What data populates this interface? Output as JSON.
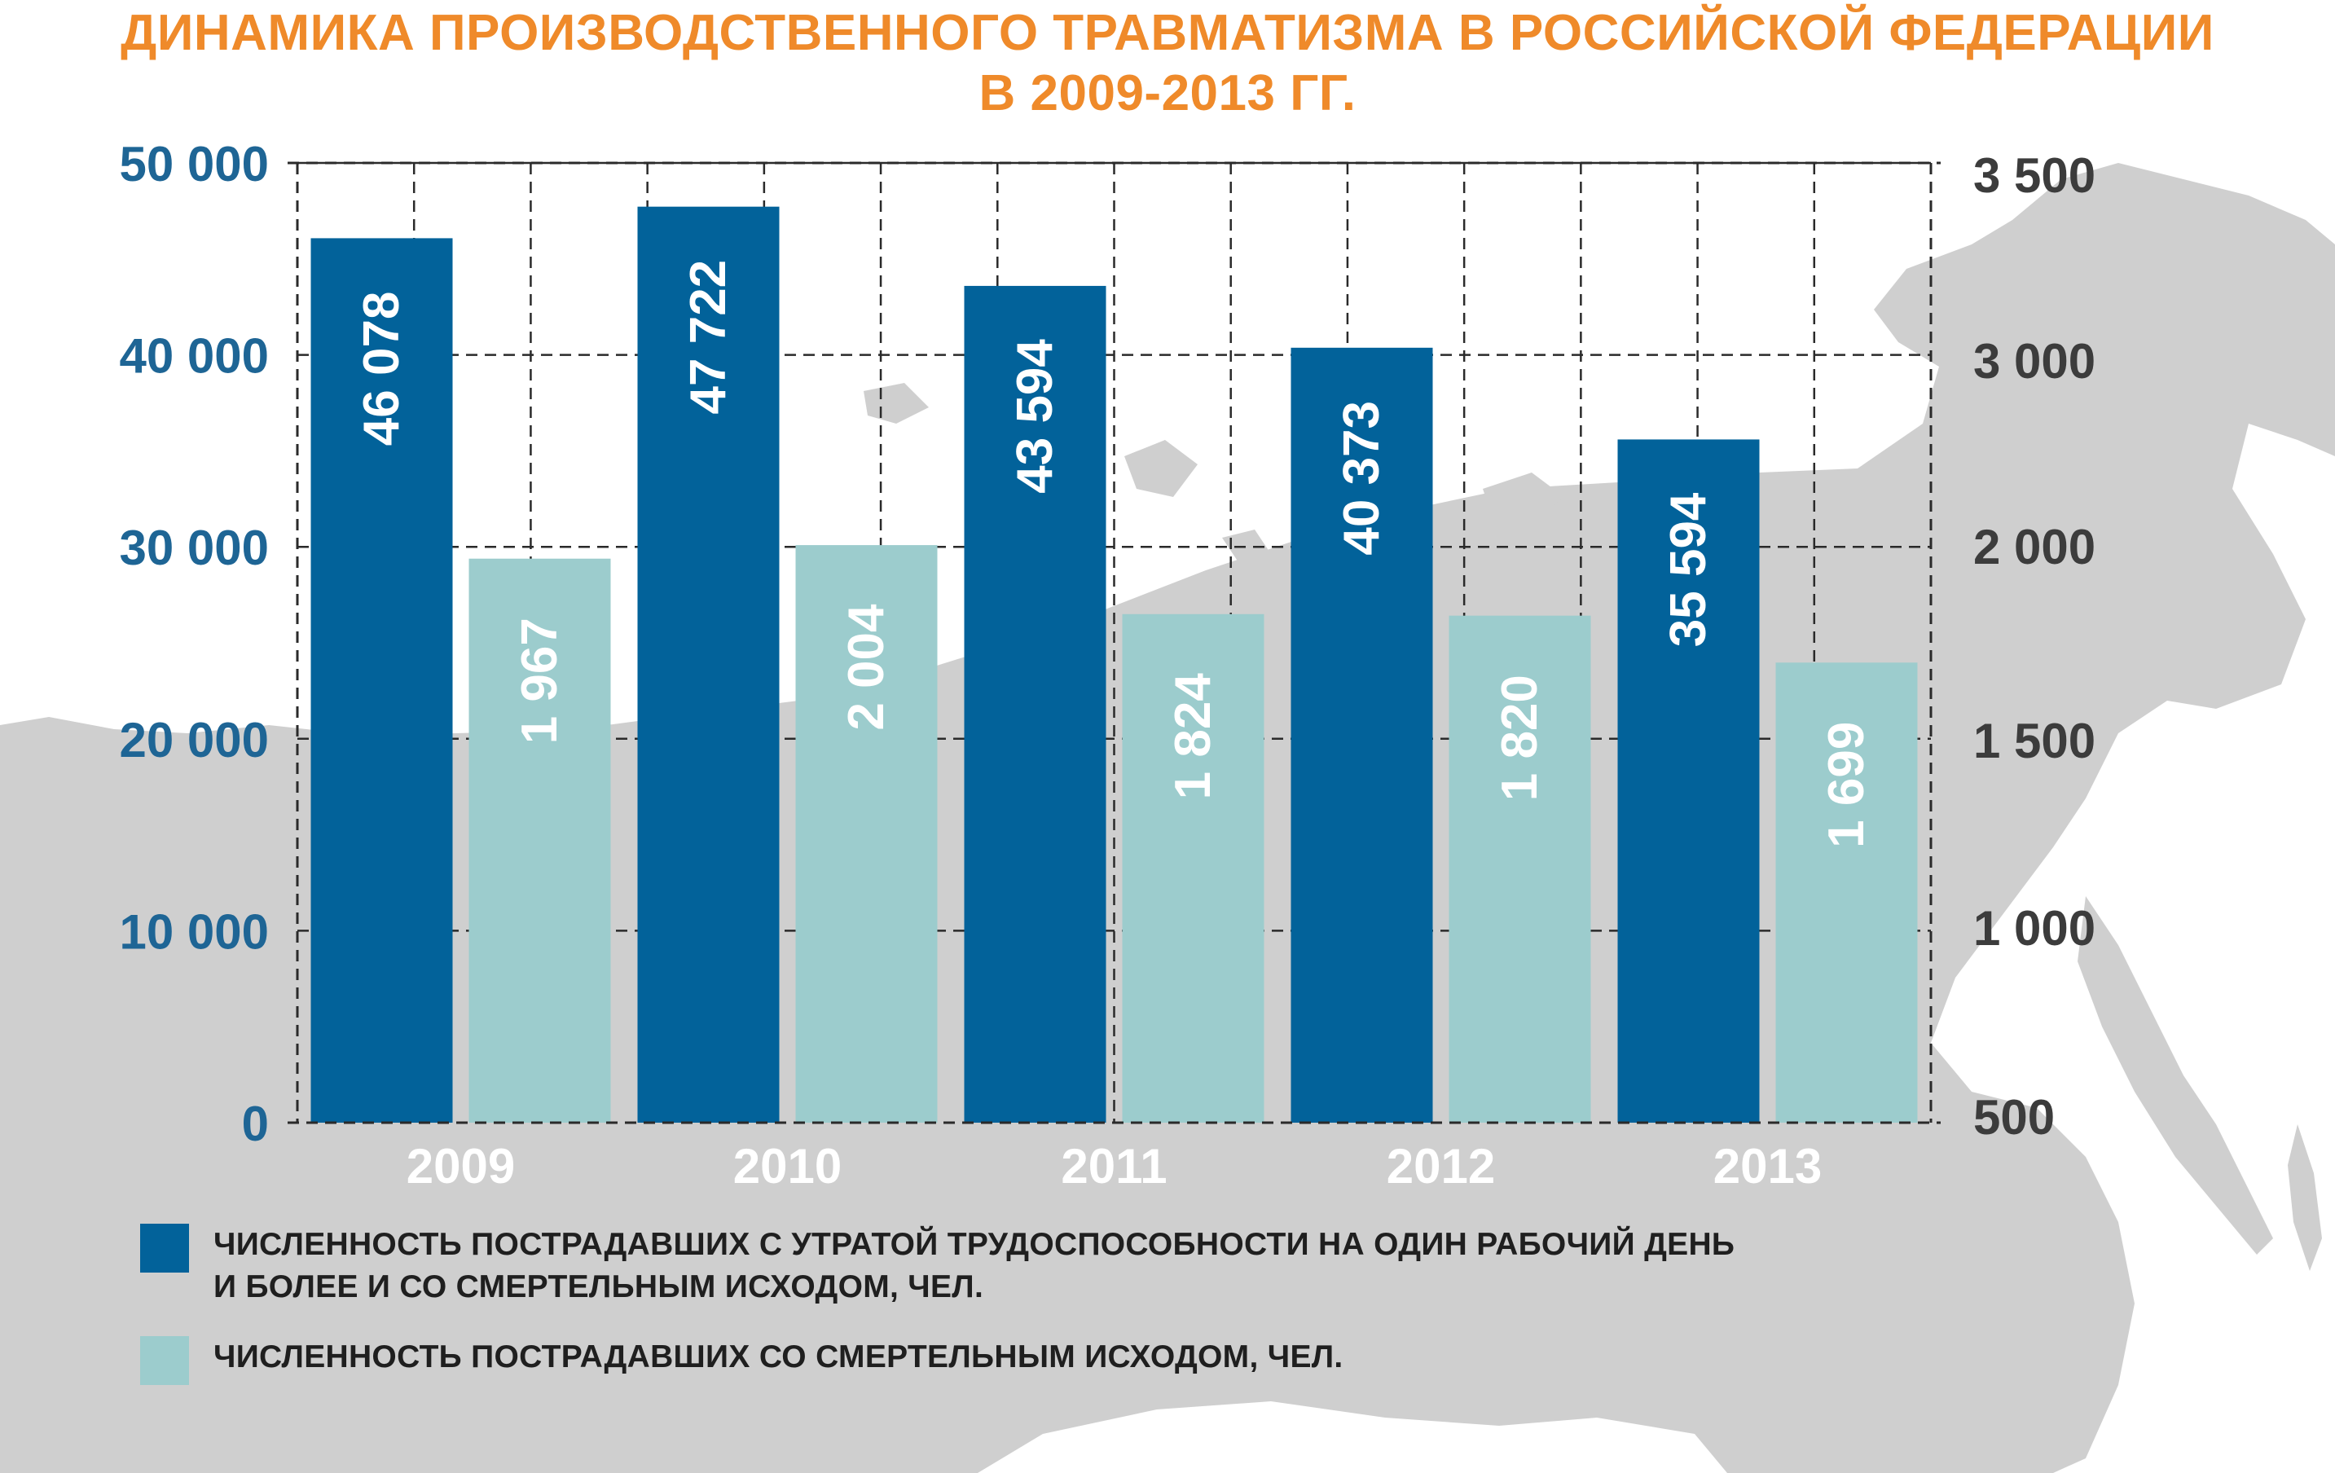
{
  "title_lines": [
    "ДИНАМИКА ПРОИЗВОДСТВЕННОГО ТРАВМАТИЗМА В РОССИЙСКОЙ ФЕДЕРАЦИИ",
    "В 2009-2013 ГГ."
  ],
  "colors": {
    "title": "#ef8a2a",
    "series_dark": "#02629a",
    "series_light": "#9ccccd",
    "left_axis": "#1e6595",
    "right_axis": "#3c3c3c",
    "map": "#cfcfcf",
    "grid": "#2a2a2a"
  },
  "chart_data": {
    "type": "bar",
    "title": "ДИНАМИКА ПРОИЗВОДСТВЕННОГО ТРАВМАТИЗМА В РОССИЙСКОЙ ФЕДЕРАЦИИ В 2009-2013 ГГ.",
    "categories": [
      "2009",
      "2010",
      "2011",
      "2012",
      "2013"
    ],
    "series": [
      {
        "name": "ЧИСЛЕННОСТЬ ПОСТРАДАВШИХ С УТРАТОЙ ТРУДОСПОСОБНОСТИ НА ОДИН РАБОЧИЙ ДЕНЬ И БОЛЕЕ И СО СМЕРТЕЛЬНЫМ ИСХОДОМ, ЧЕЛ.",
        "axis": "left",
        "values": [
          46078,
          47722,
          43594,
          40373,
          35594
        ],
        "labels": [
          "46 078",
          "47 722",
          "43 594",
          "40 373",
          "35 594"
        ]
      },
      {
        "name": "ЧИСЛЕННОСТЬ ПОСТРАДАВШИХ СО СМЕРТЕЛЬНЫМ ИСХОДОМ, ЧЕЛ.",
        "axis": "right",
        "values": [
          1967,
          2004,
          1824,
          1820,
          1699
        ],
        "labels": [
          "1 967",
          "2 004",
          "1 824",
          "1 820",
          "1 699"
        ]
      }
    ],
    "left_axis": {
      "ylim": [
        0,
        50000
      ],
      "ticks": [
        0,
        10000,
        20000,
        30000,
        40000,
        50000
      ],
      "tick_labels": [
        "0",
        "10 000",
        "20 000",
        "30 000",
        "40 000",
        "50 000"
      ]
    },
    "right_axis": {
      "ylim": [
        500,
        3500
      ],
      "ticks": [
        500,
        1000,
        1500,
        2000,
        3000,
        3500
      ],
      "tick_labels": [
        "500",
        "1 000",
        "1 500",
        "2 000",
        "3 000",
        "3 500"
      ]
    },
    "grid": true,
    "legend_position": "bottom-left"
  },
  "legend": [
    {
      "lines": [
        "ЧИСЛЕННОСТЬ ПОСТРАДАВШИХ С УТРАТОЙ ТРУДОСПОСОБНОСТИ НА ОДИН РАБОЧИЙ ДЕНЬ",
        "И БОЛЕЕ И СО СМЕРТЕЛЬНЫМ ИСХОДОМ, ЧЕЛ."
      ]
    },
    {
      "lines": [
        "ЧИСЛЕННОСТЬ ПОСТРАДАВШИХ СО СМЕРТЕЛЬНЫМ ИСХОДОМ, ЧЕЛ."
      ]
    }
  ]
}
